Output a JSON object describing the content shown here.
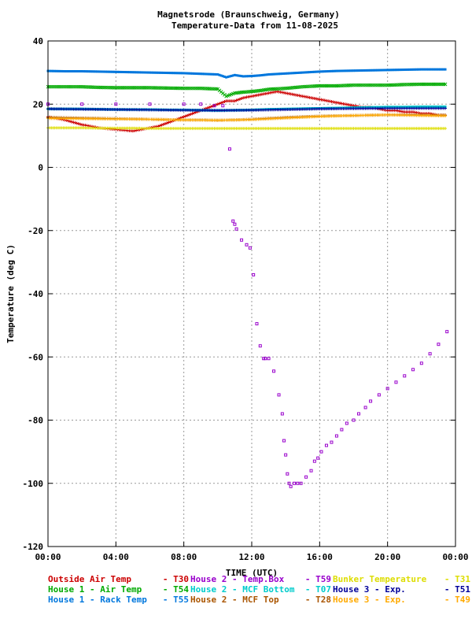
{
  "chart_data": {
    "type": "scatter",
    "title": "Magnetsrode (Braunschweig, Germany)",
    "subtitle": "Temperature-Data from 11-08-2025",
    "xlabel": "TIME (UTC)",
    "ylabel": "Temperature (deg C)",
    "x_unit": "hours UTC",
    "xlim": [
      0,
      24
    ],
    "ylim": [
      -120,
      40
    ],
    "x_ticks": [
      0,
      4,
      8,
      12,
      16,
      20,
      24
    ],
    "x_tick_labels": [
      "00:00",
      "04:00",
      "08:00",
      "12:00",
      "16:00",
      "20:00",
      "00:00"
    ],
    "y_ticks": [
      40,
      20,
      0,
      -20,
      -40,
      -60,
      -80,
      -100,
      -120
    ],
    "grid": true,
    "legend_position": "bottom",
    "series": [
      {
        "name": "Outside Air Temp",
        "tag": "T30",
        "color": "#cc0000",
        "marker": "plus",
        "x": [
          0,
          1,
          2,
          3,
          4,
          5,
          6,
          6.5,
          7,
          7.5,
          8,
          8.5,
          9,
          9.5,
          10,
          10.5,
          11,
          11.5,
          12,
          12.5,
          13,
          13.5,
          14,
          14.5,
          15,
          15.5,
          16,
          16.5,
          17,
          17.5,
          18,
          18.5,
          19,
          19.5,
          20,
          20.5,
          21,
          21.5,
          22,
          22.5,
          23,
          23.5
        ],
        "y": [
          16,
          15,
          13.5,
          12.5,
          12,
          11.5,
          12.5,
          13,
          14,
          15,
          16,
          17,
          18,
          19,
          20,
          21,
          21,
          22,
          22.5,
          23,
          23.5,
          24,
          23.5,
          23,
          22.5,
          22,
          21.5,
          21,
          20.5,
          20,
          19.5,
          19,
          19,
          18.5,
          18,
          18,
          17.5,
          17.5,
          17,
          17,
          16.5,
          16.5
        ]
      },
      {
        "name": "House 1 - Air  Temp",
        "tag": "T54",
        "color": "#00aa00",
        "marker": "x",
        "x": [
          0,
          1,
          2,
          3,
          4,
          5,
          6,
          7,
          8,
          9,
          10,
          10.5,
          11,
          11.5,
          12,
          12.5,
          13,
          14,
          15,
          16,
          17,
          18,
          19,
          20,
          21,
          22,
          23,
          23.5
        ],
        "y": [
          25.5,
          25.5,
          25.5,
          25.3,
          25.2,
          25.2,
          25.2,
          25.1,
          25,
          25,
          24.8,
          22.5,
          23.5,
          23.8,
          24,
          24.3,
          24.7,
          25,
          25.5,
          25.8,
          25.8,
          26,
          26,
          26,
          26.2,
          26.3,
          26.3,
          26.3
        ]
      },
      {
        "name": "House 1 - Rack Temp",
        "tag": "T55",
        "color": "#0077dd",
        "marker": "square",
        "x": [
          0,
          1,
          2,
          3,
          4,
          5,
          6,
          7,
          8,
          9,
          10,
          10.5,
          11,
          11.5,
          12,
          12.5,
          13,
          14,
          15,
          16,
          17,
          18,
          19,
          20,
          21,
          22,
          23,
          23.5
        ],
        "y": [
          30.5,
          30.4,
          30.4,
          30.3,
          30.2,
          30.1,
          30.0,
          29.9,
          29.8,
          29.6,
          29.4,
          28.5,
          29.2,
          28.8,
          28.9,
          29.1,
          29.4,
          29.7,
          30.0,
          30.3,
          30.5,
          30.6,
          30.7,
          30.8,
          30.9,
          31.0,
          31.0,
          31.0
        ]
      },
      {
        "name": "House 2 - Temp.Box",
        "tag": "T59",
        "color": "#9900cc",
        "marker": "square-open",
        "x": [
          0,
          2,
          4,
          6,
          8,
          9,
          9.8,
          10.3,
          10.7,
          10.9,
          11.0,
          11.1,
          11.4,
          11.7,
          11.9,
          12.1,
          12.3,
          12.5,
          12.7,
          12.8,
          13.0,
          13.3,
          13.6,
          13.8,
          13.9,
          14.0,
          14.1,
          14.2,
          14.3,
          14.5,
          14.7,
          14.9,
          15.2,
          15.5,
          15.7,
          15.9,
          16.1,
          16.4,
          16.7,
          17.0,
          17.3,
          17.6,
          18.0,
          18.3,
          18.7,
          19.0,
          19.5,
          20.0,
          20.5,
          21.0,
          21.5,
          22.0,
          22.5,
          23.0,
          23.5
        ],
        "y": [
          20,
          20,
          20,
          20,
          20,
          20,
          19.5,
          19.5,
          5.8,
          -17,
          -18,
          -19.5,
          -23,
          -24.5,
          -25.5,
          -34,
          -49.5,
          -56.5,
          -60.5,
          -60.5,
          -60.5,
          -64.5,
          -72,
          -78,
          -86.5,
          -91,
          -97,
          -100,
          -101,
          -100,
          -100,
          -100,
          -98,
          -96,
          -93,
          -92,
          -90,
          -88,
          -87,
          -85,
          -83,
          -81,
          -80,
          -78,
          -76,
          -74,
          -72,
          -70,
          -68,
          -66,
          -64,
          -62,
          -59,
          -56,
          -52
        ]
      },
      {
        "name": "House 2 - MCF Bottom",
        "tag": "T07",
        "color": "#00cccc",
        "marker": "square",
        "x": [
          0,
          1,
          2,
          3,
          4,
          5,
          6,
          7,
          8,
          9,
          10,
          11,
          12,
          13,
          14,
          15,
          16,
          17,
          18,
          19,
          20,
          21,
          22,
          23,
          23.5
        ],
        "y": [
          18.5,
          18.5,
          18.5,
          18.4,
          18.3,
          18.3,
          18.3,
          18.2,
          18.2,
          18.1,
          18.0,
          18.1,
          18.2,
          18.4,
          18.5,
          18.6,
          18.7,
          18.8,
          18.9,
          19.0,
          19.1,
          19.1,
          19.2,
          19.2,
          19.2
        ]
      },
      {
        "name": "House 2 - MCF Top",
        "tag": "T28",
        "color": "#aa5500",
        "marker": "plus",
        "x": [
          0,
          1,
          2,
          3,
          4,
          5,
          6,
          7,
          8,
          9,
          10,
          11,
          12,
          13,
          14,
          15,
          16,
          17,
          18,
          19,
          20,
          21,
          22,
          23,
          23.5
        ],
        "y": [
          15.8,
          15.7,
          15.6,
          15.5,
          15.4,
          15.3,
          15.2,
          15.1,
          15.0,
          15.0,
          14.9,
          15.0,
          15.2,
          15.5,
          15.8,
          16.0,
          16.2,
          16.3,
          16.4,
          16.5,
          16.6,
          16.6,
          16.6,
          16.5,
          16.5
        ]
      },
      {
        "name": "Bunker Temperature",
        "tag": "T31",
        "color": "#dddd00",
        "marker": "plus",
        "x": [
          0,
          1,
          2,
          3,
          4,
          5,
          6,
          7,
          8,
          9,
          10,
          11,
          12,
          13,
          14,
          15,
          16,
          17,
          18,
          19,
          20,
          21,
          22,
          23,
          23.5
        ],
        "y": [
          12.5,
          12.5,
          12.5,
          12.4,
          12.4,
          12.4,
          12.3,
          12.3,
          12.3,
          12.3,
          12.3,
          12.3,
          12.3,
          12.3,
          12.3,
          12.3,
          12.3,
          12.3,
          12.3,
          12.3,
          12.3,
          12.3,
          12.3,
          12.3,
          12.3
        ]
      },
      {
        "name": "House 3 - Exp.",
        "tag": "T51",
        "color": "#000099",
        "marker": "plus",
        "x": [
          0,
          2,
          4,
          6,
          8,
          10,
          12,
          14,
          16,
          18,
          20,
          22,
          23.5
        ],
        "y": [
          18.5,
          18.4,
          18.3,
          18.2,
          18.1,
          18.0,
          18.1,
          18.3,
          18.5,
          18.6,
          18.7,
          18.7,
          18.7
        ]
      },
      {
        "name": "House 3 - Exp.",
        "tag": "T49",
        "color": "#ffaa00",
        "marker": "plus",
        "x": [
          0,
          2,
          4,
          6,
          8,
          10,
          12,
          14,
          16,
          18,
          20,
          22,
          23.5
        ],
        "y": [
          15.5,
          15.4,
          15.3,
          15.2,
          15.0,
          14.9,
          15.1,
          15.6,
          16.1,
          16.4,
          16.6,
          16.4,
          16.3
        ]
      }
    ]
  }
}
